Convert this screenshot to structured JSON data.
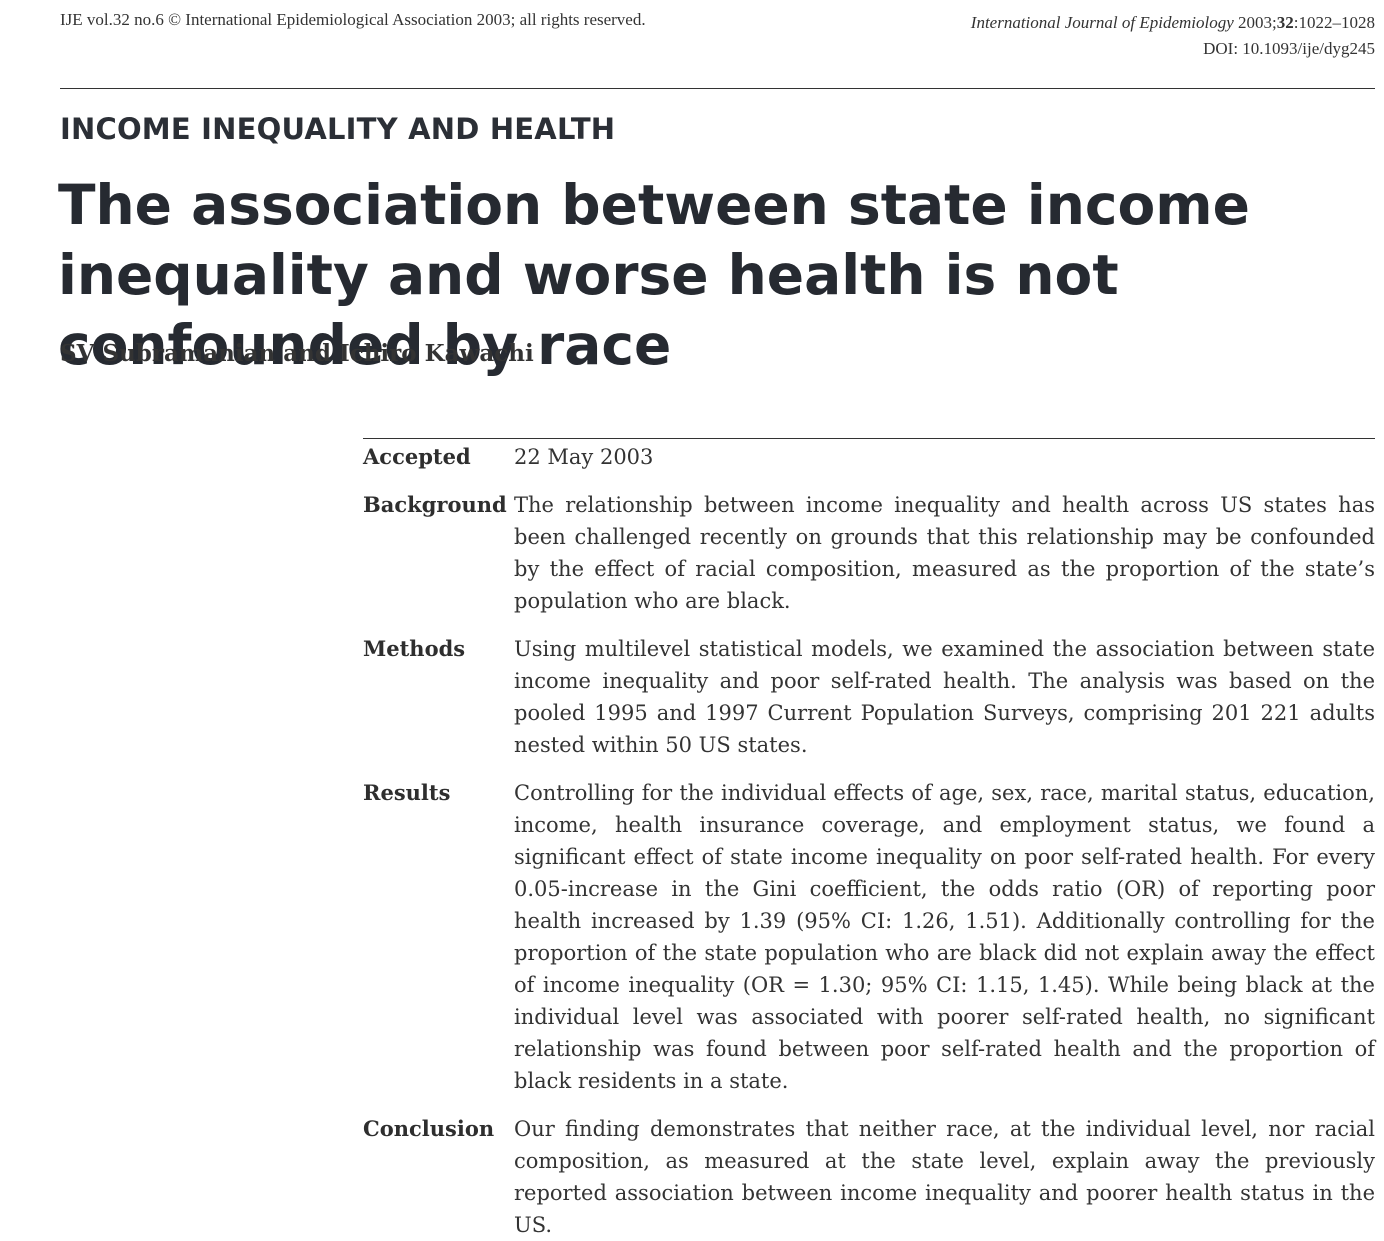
{
  "header": {
    "left": "IJE vol.32 no.6 © International Epidemiological Association 2003; all rights reserved.",
    "journal": "International Journal of Epidemiology",
    "year": "2003;",
    "volume": "32",
    "pages": ":1022–1028",
    "doi": "DOI: 10.1093/ije/dyg245"
  },
  "section_label": "INCOME INEQUALITY AND HEALTH",
  "title": "The association between state income inequality and worse health is not confounded by race",
  "authors": "SV Subramanian and Ichiro Kawachi",
  "abstract": {
    "accepted": {
      "label": "Accepted",
      "text": "22 May 2003"
    },
    "background": {
      "label": "Background",
      "text": "The relationship between income inequality and health across US states has been challenged recently on grounds that this relationship may be confounded by the effect of racial composition, measured as the proportion of the state’s population who are black."
    },
    "methods": {
      "label": "Methods",
      "text": "Using multilevel statistical models, we examined the association between state income inequality and poor self-rated health. The analysis was based on the pooled 1995 and 1997 Current Population Surveys, comprising 201 221 adults nested within 50 US states."
    },
    "results": {
      "label": "Results",
      "text": "Controlling for the individual effects of age, sex, race, marital status, education, income, health insurance coverage, and employment status, we found a significant effect of state income inequality on poor self-rated health. For every 0.05-increase in the Gini coefficient, the odds ratio (OR) of reporting poor health increased by 1.39 (95% CI: 1.26, 1.51). Additionally controlling for the proportion of the state population who are black did not explain away the effect of income inequality (OR = 1.30; 95% CI: 1.15, 1.45). While being black at the individual level was associated with poorer self-rated health, no significant relationship was found between poor self-rated health and the proportion of black residents in a state."
    },
    "conclusion": {
      "label": "Conclusion",
      "text": "Our finding demonstrates that neither race, at the individual level, nor racial composition, as measured at the state level, explain away the previously reported association between income inequality and poorer health status in the US."
    }
  }
}
